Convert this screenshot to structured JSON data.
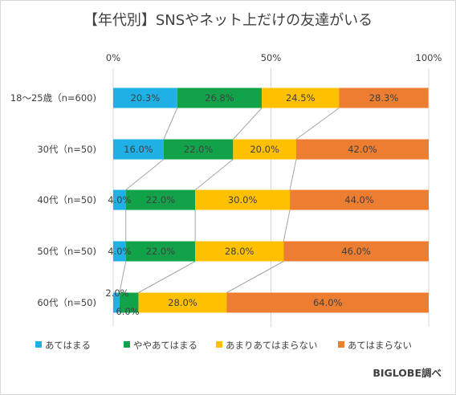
{
  "chart_data": {
    "type": "bar",
    "stacked": true,
    "orientation": "horizontal",
    "title": "【年代別】SNSやネット上だけの友達がいる",
    "categories": [
      "18～25歳（n=600)",
      "30代（n=50)",
      "40代（n=50)",
      "50代（n=50)",
      "60代（n=50)"
    ],
    "series": [
      {
        "name": "あてはまる",
        "color": "#1fb0e6",
        "values": [
          20.3,
          16.0,
          4.0,
          4.0,
          2.0
        ]
      },
      {
        "name": "ややあてはまる",
        "color": "#12a34a",
        "values": [
          26.8,
          22.0,
          22.0,
          22.0,
          6.0
        ]
      },
      {
        "name": "あまりあてはまらない",
        "color": "#ffc000",
        "values": [
          24.5,
          20.0,
          30.0,
          28.0,
          28.0
        ]
      },
      {
        "name": "あてはまらない",
        "color": "#ed7d31",
        "values": [
          28.3,
          42.0,
          44.0,
          46.0,
          64.0
        ]
      }
    ],
    "value_labels": [
      [
        "20.3%",
        "26.8%",
        "24.5%",
        "28.3%"
      ],
      [
        "16.0%",
        "22.0%",
        "20.0%",
        "42.0%"
      ],
      [
        "4.0%",
        "22.0%",
        "30.0%",
        "44.0%"
      ],
      [
        "4.0%",
        "22.0%",
        "28.0%",
        "46.0%"
      ],
      [
        "2.0%",
        "6.0%",
        "28.0%",
        "64.0%"
      ]
    ],
    "xticks": [
      "0%",
      "50%",
      "100%"
    ],
    "xlim": [
      0,
      100
    ],
    "series_lines": true,
    "legend_position": "bottom",
    "credit": "BIGLOBE調べ"
  }
}
